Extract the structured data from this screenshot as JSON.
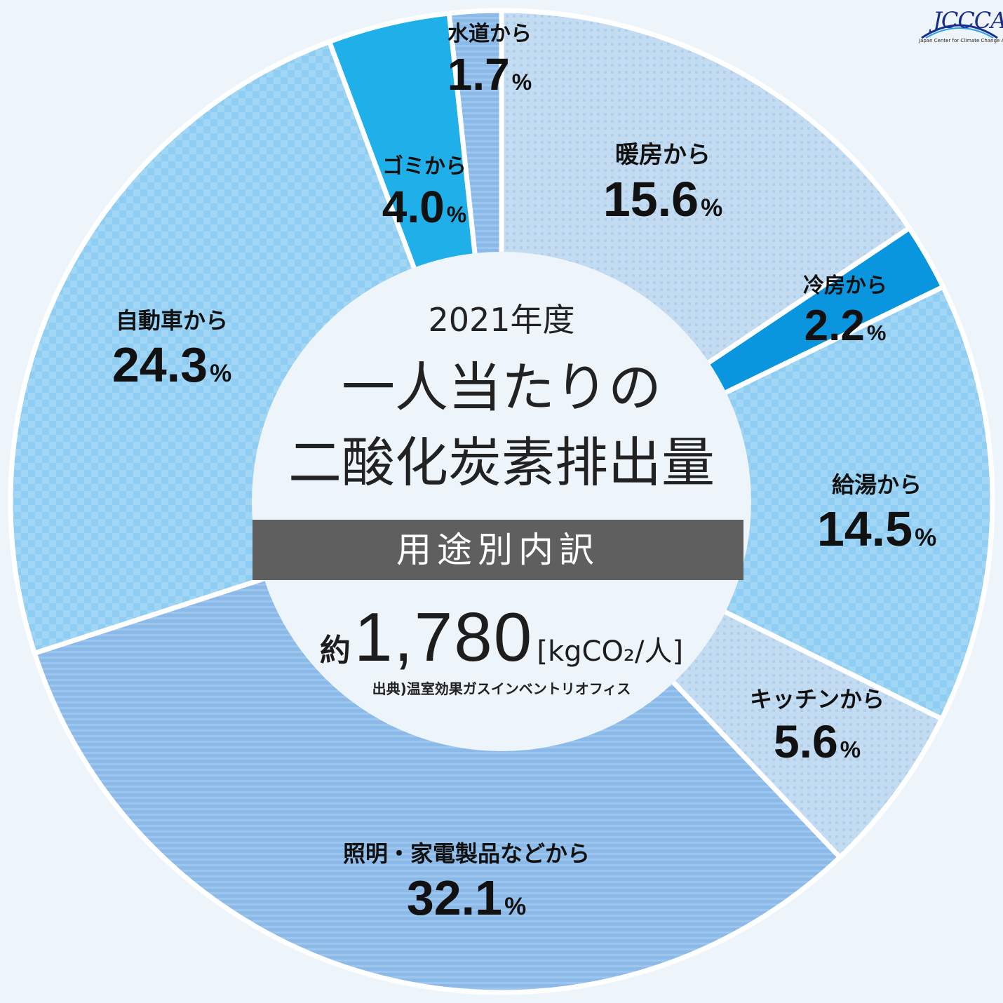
{
  "chart_data": {
    "type": "pie",
    "subtitle": "2021年度",
    "title_lines": [
      "一人当たりの",
      "二酸化炭素排出量"
    ],
    "band_label": "用途別内訳",
    "total_prefix": "約",
    "total_value": "1,780",
    "total_unit": "[kgCO₂/人]",
    "source": "出典)温室効果ガスインベントリオフィス",
    "slices": [
      {
        "label": "暖房から",
        "value": 15.6,
        "text": "15.6",
        "color": "#c4dcf1",
        "pattern": "dots"
      },
      {
        "label": "冷房から",
        "value": 2.2,
        "text": "2.2",
        "color": "#0a96de",
        "pattern": "none"
      },
      {
        "label": "給湯から",
        "value": 14.5,
        "text": "14.5",
        "color": "#8fcdf3",
        "pattern": "check"
      },
      {
        "label": "キッチンから",
        "value": 5.6,
        "text": "5.6",
        "color": "#c4dcf1",
        "pattern": "dots"
      },
      {
        "label": "照明・家電製品などから",
        "value": 32.1,
        "text": "32.1",
        "color": "#8bb9e8",
        "pattern": "lines"
      },
      {
        "label": "自動車から",
        "value": 24.3,
        "text": "24.3",
        "color": "#8fcdf3",
        "pattern": "check"
      },
      {
        "label": "ゴミから",
        "value": 4.0,
        "text": "4.0",
        "color": "#1fb0ea",
        "pattern": "none"
      },
      {
        "label": "水道から",
        "value": 1.7,
        "text": "1.7",
        "color": "#8bb9e8",
        "pattern": "lines"
      }
    ],
    "percent_sign": "%"
  },
  "logo": {
    "text": "JCCCA",
    "sub": "Japan Center for Climate Change Actions"
  }
}
